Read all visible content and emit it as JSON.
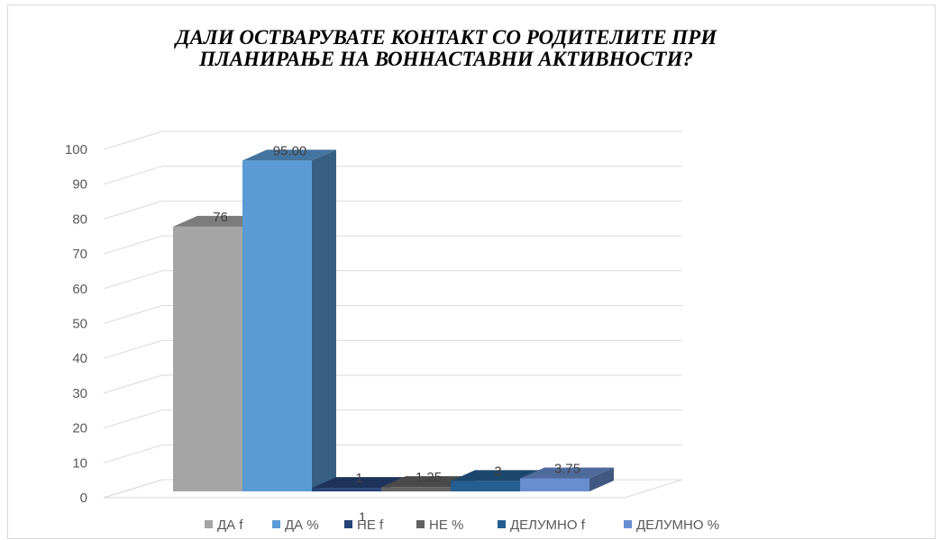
{
  "chart_data": {
    "type": "bar",
    "title": "ДАЛИ ОСТВАРУВАТЕ КОНТАКТ СО РОДИТЕЛИТЕ ПРИ ПЛАНИРАЊЕ НА ВОННАСТАВНИ АКТИВНОСТИ?",
    "categories": [
      "1"
    ],
    "ylim": [
      0,
      100
    ],
    "yticks": [
      0,
      10,
      20,
      30,
      40,
      50,
      60,
      70,
      80,
      90,
      100
    ],
    "grid": true,
    "legend_position": "bottom",
    "series": [
      {
        "name": "ДА f",
        "value": 76,
        "label": "76",
        "color": "#a5a5a5"
      },
      {
        "name": "ДА %",
        "value": 95,
        "label": "95.00",
        "color": "#5b9bd5"
      },
      {
        "name": "НЕ f",
        "value": 1,
        "label": "1",
        "color": "#264478"
      },
      {
        "name": "НЕ %",
        "value": 1.25,
        "label": "1.25",
        "color": "#636363"
      },
      {
        "name": "ДЕЛУМНО f",
        "value": 3,
        "label": "3",
        "color": "#255e91"
      },
      {
        "name": "ДЕЛУМНО %",
        "value": 3.75,
        "label": "3.75",
        "color": "#698ed0"
      }
    ]
  }
}
